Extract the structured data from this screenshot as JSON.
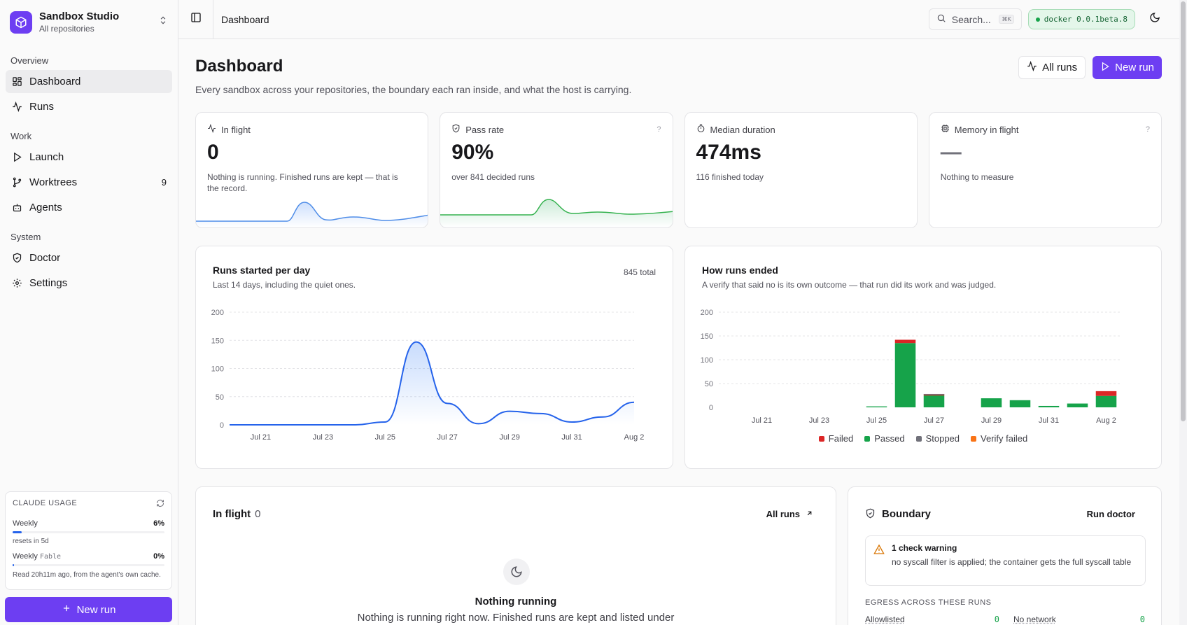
{
  "sidebar": {
    "brand": {
      "name": "Sandbox Studio",
      "subtitle": "All repositories"
    },
    "sections": [
      {
        "title": "Overview",
        "items": [
          {
            "label": "Dashboard",
            "icon": "dashboard-icon",
            "active": true
          },
          {
            "label": "Runs",
            "icon": "activity-icon"
          }
        ]
      },
      {
        "title": "Work",
        "items": [
          {
            "label": "Launch",
            "icon": "play-icon"
          },
          {
            "label": "Worktrees",
            "icon": "git-branch-icon",
            "count": "9"
          },
          {
            "label": "Agents",
            "icon": "bot-icon"
          }
        ]
      },
      {
        "title": "System",
        "items": [
          {
            "label": "Doctor",
            "icon": "shield-check-icon"
          },
          {
            "label": "Settings",
            "icon": "gear-icon"
          }
        ]
      }
    ],
    "usage": {
      "title": "CLAUDE USAGE",
      "weekly_label": "Weekly",
      "weekly_pct": "6%",
      "weekly_value": 0.06,
      "weekly_reset": "resets in 5d",
      "fable_label": "Weekly",
      "fable_model": "Fable",
      "fable_pct": "0%",
      "fable_value": 0.0,
      "note": "Read 20h11m ago, from the agent's own cache."
    },
    "new_run_label": "New run"
  },
  "topbar": {
    "breadcrumb": "Dashboard",
    "search_placeholder": "Search...",
    "search_shortcut": "⌘K",
    "docker_version": "docker 0.0.1beta.8"
  },
  "header": {
    "title": "Dashboard",
    "subtitle": "Every sandbox across your repositories, the boundary each ran inside, and what the host is carrying.",
    "all_runs_label": "All runs",
    "new_run_label": "New run"
  },
  "stats": [
    {
      "label": "In flight",
      "icon": "activity-icon",
      "value": "0",
      "detail": "Nothing is running. Finished runs are kept — that is the record.",
      "help": ""
    },
    {
      "label": "Pass rate",
      "icon": "shield-check-icon",
      "value": "90%",
      "detail": "over 841 decided runs",
      "help": "?"
    },
    {
      "label": "Median duration",
      "icon": "timer-icon",
      "value": "474ms",
      "detail": "116 finished today",
      "help": ""
    },
    {
      "label": "Memory in flight",
      "icon": "cpu-icon",
      "value": "—",
      "detail": "Nothing to measure",
      "help": "?"
    }
  ],
  "colors": {
    "accent": "#6d3ef2",
    "line": "#2563eb",
    "passed": "#16a34a",
    "failed": "#dc2626",
    "stopped": "#71717a",
    "verify_failed": "#f97316"
  },
  "runs_chart": {
    "title": "Runs started per day",
    "subtitle": "Last 14 days, including the quiet ones.",
    "total": "845 total"
  },
  "outcomes_chart": {
    "title": "How runs ended",
    "subtitle": "A verify that said no is its own outcome — that run did its work and was judged."
  },
  "chart_data": [
    {
      "type": "area",
      "title": "Runs started per day",
      "x": [
        "Jul 20",
        "Jul 21",
        "Jul 22",
        "Jul 23",
        "Jul 24",
        "Jul 25",
        "Jul 26",
        "Jul 27",
        "Jul 28",
        "Jul 29",
        "Jul 30",
        "Jul 31",
        "Aug 1",
        "Aug 2"
      ],
      "x_tick_labels": [
        "Jul 21",
        "Jul 23",
        "Jul 25",
        "Jul 27",
        "Jul 29",
        "Jul 31",
        "Aug 2"
      ],
      "y_tick_labels": [
        "0",
        "50",
        "100",
        "150",
        "200"
      ],
      "values": [
        0,
        0,
        0,
        0,
        0,
        5,
        147,
        38,
        2,
        24,
        20,
        5,
        14,
        40
      ],
      "ylim": [
        0,
        200
      ],
      "grid": true
    },
    {
      "type": "bar",
      "stacked": true,
      "title": "How runs ended",
      "categories": [
        "Jul 20",
        "Jul 21",
        "Jul 22",
        "Jul 23",
        "Jul 24",
        "Jul 25",
        "Jul 26",
        "Jul 27",
        "Jul 28",
        "Jul 29",
        "Jul 30",
        "Jul 31",
        "Aug 1",
        "Aug 2"
      ],
      "x_tick_labels": [
        "Jul 21",
        "Jul 23",
        "Jul 25",
        "Jul 27",
        "Jul 29",
        "Jul 31",
        "Aug 2"
      ],
      "y_tick_labels": [
        "0",
        "50",
        "100",
        "150",
        "200"
      ],
      "series": [
        {
          "name": "Passed",
          "values": [
            0,
            0,
            0,
            0,
            0,
            2,
            135,
            25,
            0,
            19,
            15,
            3,
            8,
            24
          ]
        },
        {
          "name": "Failed",
          "values": [
            0,
            0,
            0,
            0,
            0,
            0,
            7,
            2,
            0,
            0,
            0,
            0,
            0,
            10
          ]
        },
        {
          "name": "Stopped",
          "values": [
            0,
            0,
            0,
            0,
            0,
            0,
            0,
            1,
            0,
            0,
            0,
            0,
            0,
            0
          ]
        },
        {
          "name": "Verify failed",
          "values": [
            0,
            0,
            0,
            0,
            0,
            0,
            0,
            0,
            0,
            0,
            0,
            0,
            0,
            0
          ]
        }
      ],
      "ylim": [
        0,
        200
      ],
      "legend": [
        "Failed",
        "Passed",
        "Stopped",
        "Verify failed"
      ],
      "legend_position": "bottom"
    }
  ],
  "in_flight": {
    "title": "In flight",
    "count": "0",
    "link": "All runs",
    "empty_title": "Nothing running",
    "empty_desc": "Nothing is running right now. Finished runs are kept and listed under"
  },
  "boundary": {
    "title": "Boundary",
    "action": "Run doctor",
    "warning_title": "1 check warning",
    "warning_desc": "no syscall filter is applied; the container gets the full syscall table",
    "egress_title": "EGRESS ACROSS THESE RUNS",
    "allowlisted_label": "Allowlisted",
    "allowlisted_count": "0",
    "no_network_label": "No network",
    "no_network_count": "0"
  }
}
